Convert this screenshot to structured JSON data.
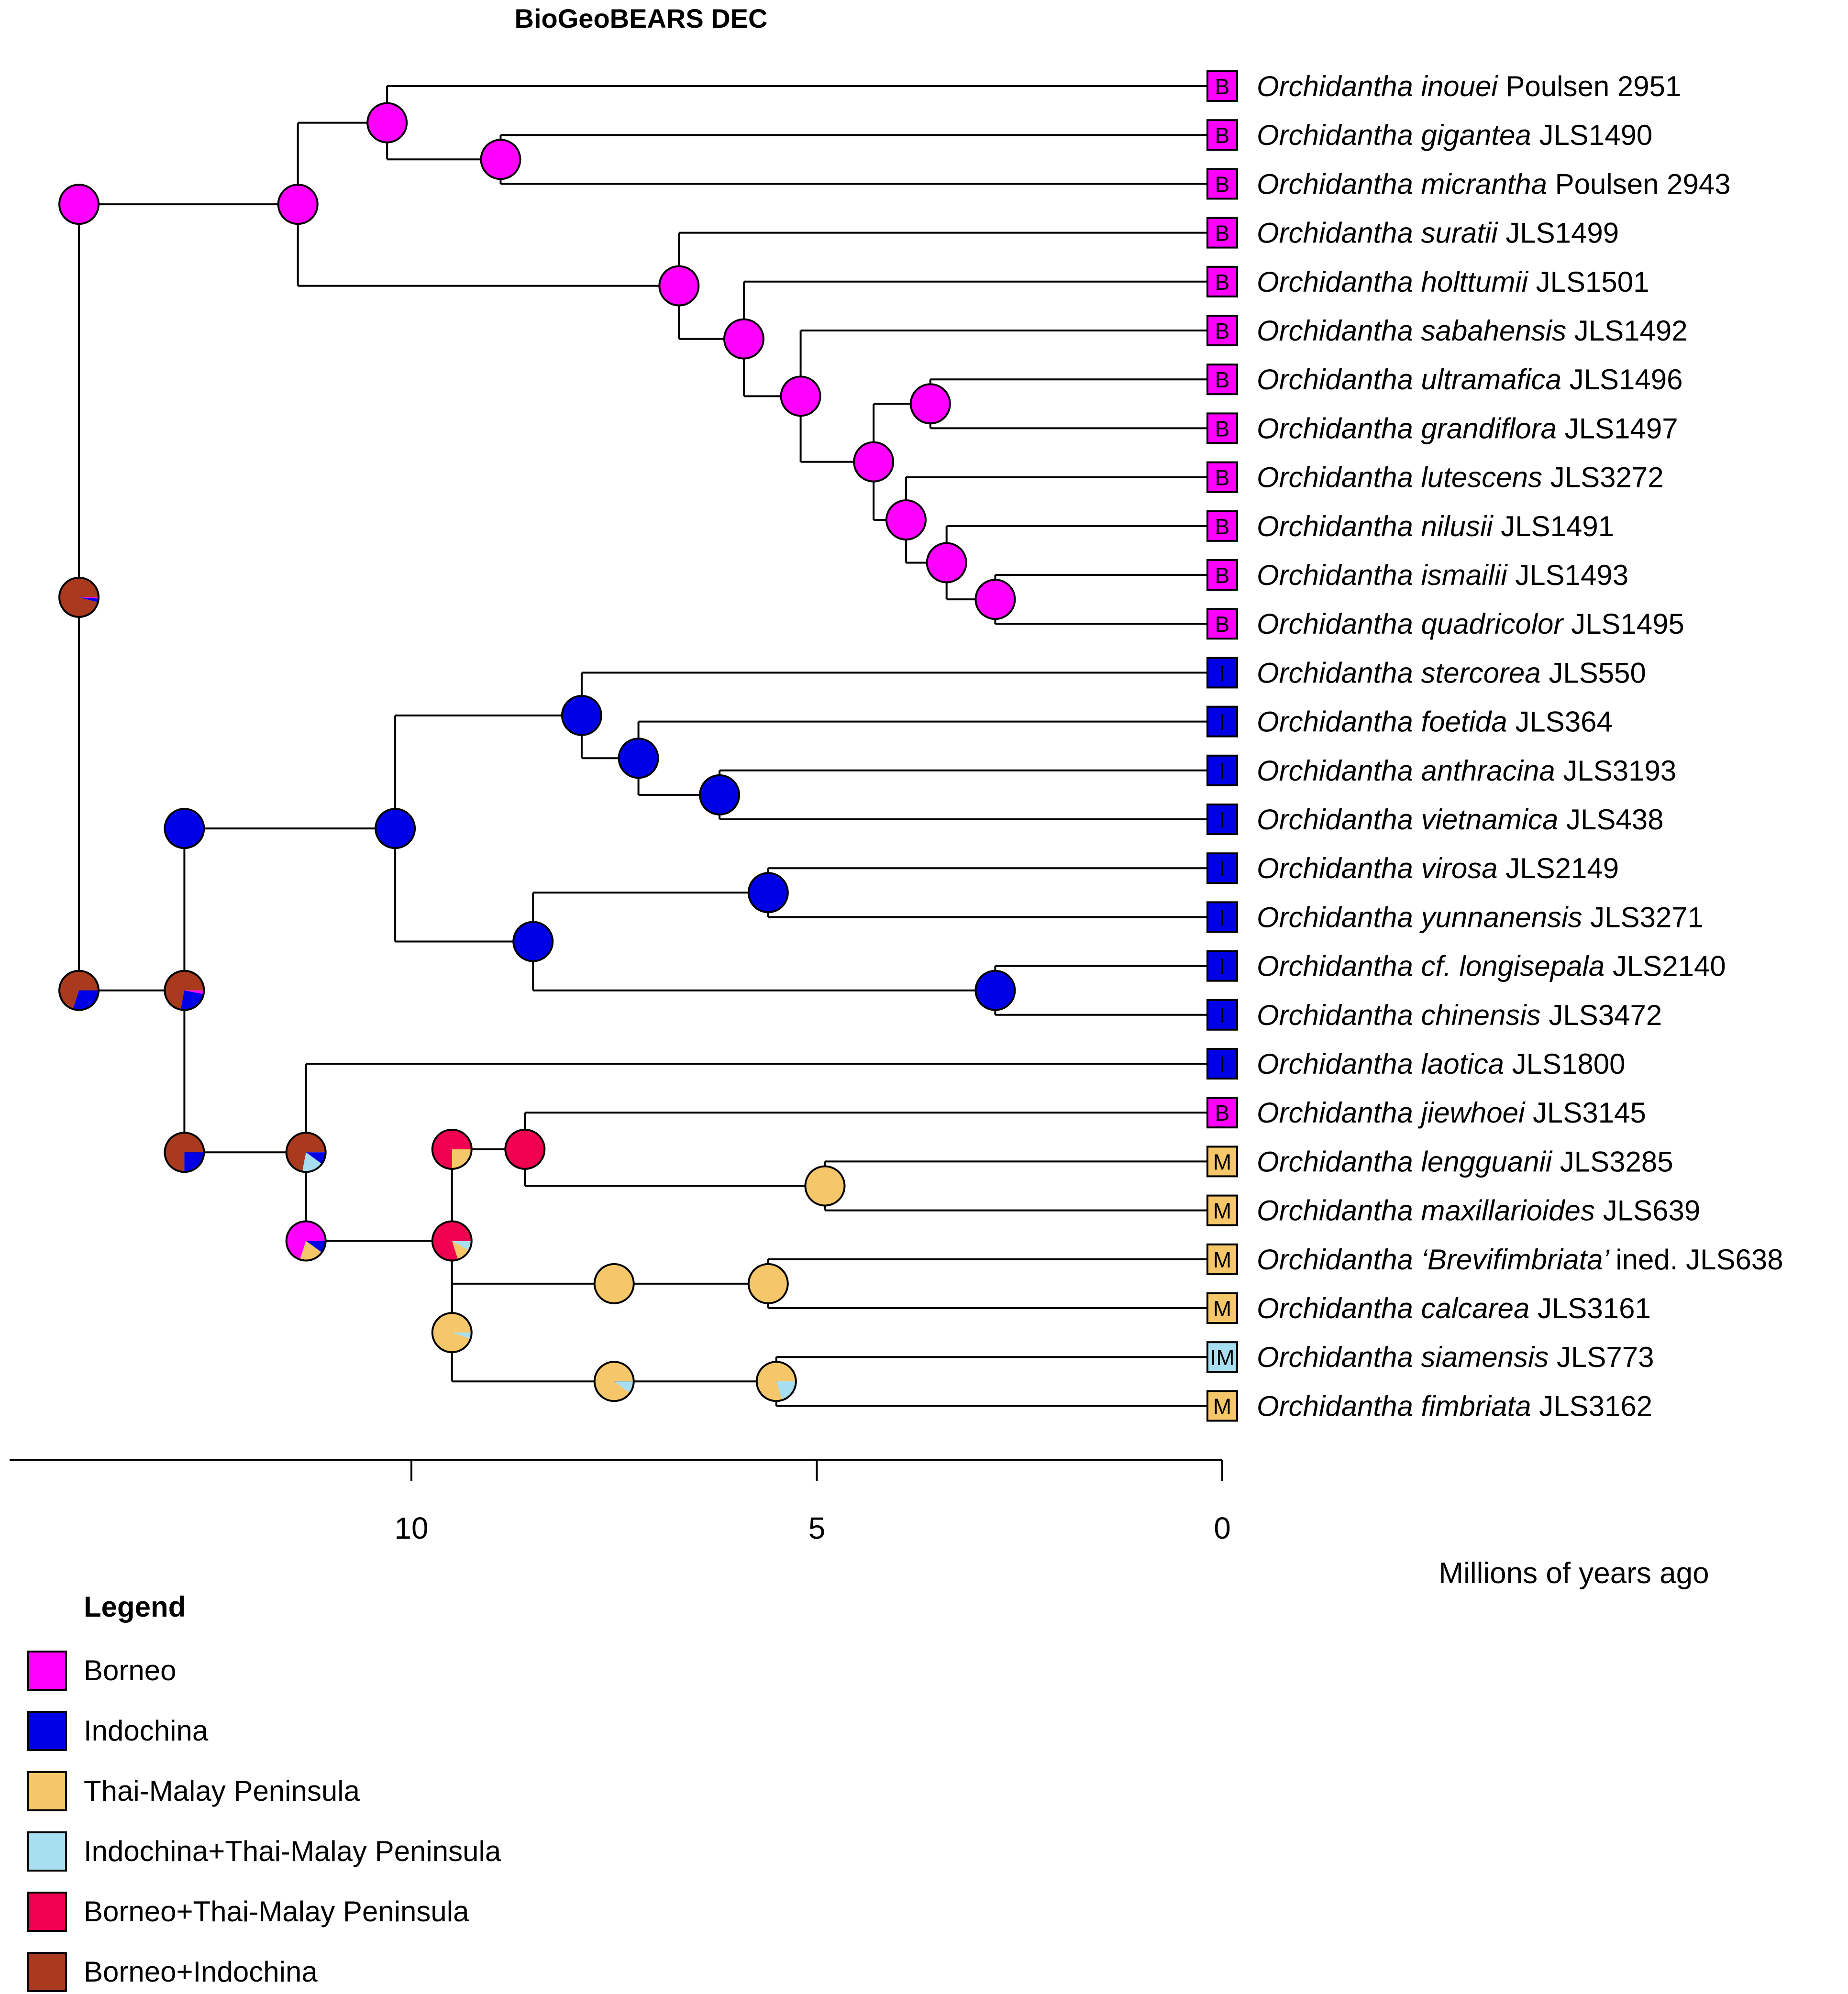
{
  "title": "BioGeoBEARS DEC",
  "colors": {
    "Borneo": "#ff00ff",
    "Indochina": "#0000e6",
    "Thai-Malay Peninsula": "#f5c76a",
    "Indochina+Thai-Malay Peninsula": "#a8dff0",
    "Borneo+Thai-Malay Peninsula": "#f00050",
    "Borneo+Indochina": "#a93a1e"
  },
  "legend": {
    "title": "Legend",
    "items": [
      {
        "label": "Borneo",
        "area": "Borneo"
      },
      {
        "label": "Indochina",
        "area": "Indochina"
      },
      {
        "label": "Thai-Malay Peninsula",
        "area": "Thai-Malay Peninsula"
      },
      {
        "label": "Indochina+Thai-Malay Peninsula",
        "area": "Indochina+Thai-Malay Peninsula"
      },
      {
        "label": "Borneo+Thai-Malay Peninsula",
        "area": "Borneo+Thai-Malay Peninsula"
      },
      {
        "label": "Borneo+Indochina",
        "area": "Borneo+Indochina"
      }
    ]
  },
  "axis": {
    "title": "Millions of years ago",
    "ticks": [
      {
        "value": 10,
        "label": "10"
      },
      {
        "value": 5,
        "label": "5"
      },
      {
        "value": 0,
        "label": "0"
      }
    ]
  },
  "tips": [
    {
      "genus": "Orchidantha",
      "species": "inouei",
      "voucher": "Poulsen 2951",
      "code": "B",
      "area": "Borneo"
    },
    {
      "genus": "Orchidantha",
      "species": "gigantea",
      "voucher": "JLS1490",
      "code": "B",
      "area": "Borneo"
    },
    {
      "genus": "Orchidantha",
      "species": "micrantha",
      "voucher": "Poulsen 2943",
      "code": "B",
      "area": "Borneo"
    },
    {
      "genus": "Orchidantha",
      "species": "suratii",
      "voucher": "JLS1499",
      "code": "B",
      "area": "Borneo"
    },
    {
      "genus": "Orchidantha",
      "species": "holttumii",
      "voucher": "JLS1501",
      "code": "B",
      "area": "Borneo"
    },
    {
      "genus": "Orchidantha",
      "species": "sabahensis",
      "voucher": "JLS1492",
      "code": "B",
      "area": "Borneo"
    },
    {
      "genus": "Orchidantha",
      "species": "ultramafica",
      "voucher": "JLS1496",
      "code": "B",
      "area": "Borneo"
    },
    {
      "genus": "Orchidantha",
      "species": "grandiflora",
      "voucher": "JLS1497",
      "code": "B",
      "area": "Borneo"
    },
    {
      "genus": "Orchidantha",
      "species": "lutescens",
      "voucher": "JLS3272",
      "code": "B",
      "area": "Borneo"
    },
    {
      "genus": "Orchidantha",
      "species": "nilusii",
      "voucher": "JLS1491",
      "code": "B",
      "area": "Borneo"
    },
    {
      "genus": "Orchidantha",
      "species": "ismailii",
      "voucher": "JLS1493",
      "code": "B",
      "area": "Borneo"
    },
    {
      "genus": "Orchidantha",
      "species": "quadricolor",
      "voucher": "JLS1495",
      "code": "B",
      "area": "Borneo"
    },
    {
      "genus": "Orchidantha",
      "species": "stercorea",
      "voucher": "JLS550",
      "code": "I",
      "area": "Indochina"
    },
    {
      "genus": "Orchidantha",
      "species": "foetida",
      "voucher": "JLS364",
      "code": "I",
      "area": "Indochina"
    },
    {
      "genus": "Orchidantha",
      "species": "anthracina",
      "voucher": "JLS3193",
      "code": "I",
      "area": "Indochina"
    },
    {
      "genus": "Orchidantha",
      "species": "vietnamica",
      "voucher": "JLS438",
      "code": "I",
      "area": "Indochina"
    },
    {
      "genus": "Orchidantha",
      "species": "virosa",
      "voucher": "JLS2149",
      "code": "I",
      "area": "Indochina"
    },
    {
      "genus": "Orchidantha",
      "species": "yunnanensis",
      "voucher": "JLS3271",
      "code": "I",
      "area": "Indochina"
    },
    {
      "genus": "Orchidantha",
      "species": "cf. longisepala",
      "voucher": "JLS2140",
      "code": "I",
      "area": "Indochina"
    },
    {
      "genus": "Orchidantha",
      "species": "chinensis",
      "voucher": "JLS3472",
      "code": "I",
      "area": "Indochina"
    },
    {
      "genus": "Orchidantha",
      "species": "laotica",
      "voucher": "JLS1800",
      "code": "I",
      "area": "Indochina"
    },
    {
      "genus": "Orchidantha",
      "species": "jiewhoei",
      "voucher": "JLS3145",
      "code": "B",
      "area": "Borneo"
    },
    {
      "genus": "Orchidantha",
      "species": "lengguanii",
      "voucher": "JLS3285",
      "code": "M",
      "area": "Thai-Malay Peninsula"
    },
    {
      "genus": "Orchidantha",
      "species": "maxillarioides",
      "voucher": "JLS639",
      "code": "M",
      "area": "Thai-Malay Peninsula"
    },
    {
      "genus": "Orchidantha",
      "species": "‘Brevifimbriata’",
      "voucher": "ined. JLS638",
      "code": "M",
      "area": "Thai-Malay Peninsula"
    },
    {
      "genus": "Orchidantha",
      "species": "calcarea",
      "voucher": "JLS3161",
      "code": "M",
      "area": "Thai-Malay Peninsula"
    },
    {
      "genus": "Orchidantha",
      "species": "siamensis",
      "voucher": "JLS773",
      "code": "IM",
      "area": "Indochina+Thai-Malay Peninsula"
    },
    {
      "genus": "Orchidantha",
      "species": "fimbriata",
      "voucher": "JLS3162",
      "code": "M",
      "area": "Thai-Malay Peninsula"
    }
  ],
  "nodes": [
    {
      "id": "n_inouei_gig",
      "age": 10.3,
      "children": [
        0,
        "n_gig_mic"
      ],
      "pie": {
        "Borneo": 1
      }
    },
    {
      "id": "n_gig_mic",
      "age": 8.9,
      "children": [
        1,
        2
      ],
      "pie": {
        "Borneo": 1
      }
    },
    {
      "id": "n_borneo_top",
      "age": 11.4,
      "children": [
        "n_inouei_gig",
        "n_suratii_clade"
      ],
      "pie": {
        "Borneo": 1
      }
    },
    {
      "id": "n_suratii_clade",
      "age": 6.7,
      "children": [
        3,
        "n_holt_clade"
      ],
      "pie": {
        "Borneo": 1
      }
    },
    {
      "id": "n_holt_clade",
      "age": 5.9,
      "children": [
        4,
        "n_sab_clade"
      ],
      "pie": {
        "Borneo": 1
      }
    },
    {
      "id": "n_sab_clade",
      "age": 5.2,
      "children": [
        5,
        "n_ultra_clade"
      ],
      "pie": {
        "Borneo": 1
      }
    },
    {
      "id": "n_ultra_clade",
      "age": 4.3,
      "children": [
        "n_ultra_grand",
        "n_lut_clade"
      ],
      "pie": {
        "Borneo": 1
      }
    },
    {
      "id": "n_ultra_grand",
      "age": 3.6,
      "children": [
        6,
        7
      ],
      "pie": {
        "Borneo": 1
      }
    },
    {
      "id": "n_lut_clade",
      "age": 3.9,
      "children": [
        8,
        "n_nil_clade"
      ],
      "pie": {
        "Borneo": 1
      }
    },
    {
      "id": "n_nil_clade",
      "age": 3.4,
      "children": [
        9,
        "n_ism_quad"
      ],
      "pie": {
        "Borneo": 1
      }
    },
    {
      "id": "n_ism_quad",
      "age": 2.8,
      "children": [
        10,
        11
      ],
      "pie": {
        "Borneo": 1
      }
    },
    {
      "id": "n_borneo_stem",
      "age": 14.1,
      "children": [
        "n_borneo_top"
      ],
      "pie": {
        "Borneo": 1
      }
    },
    {
      "id": "n_root",
      "age": 14.1,
      "children": [
        "n_borneo_stem",
        "n_rest"
      ],
      "pie": {
        "Borneo+Indochina": 0.96,
        "Indochina": 0.03,
        "Borneo": 0.01
      }
    },
    {
      "id": "n_rest",
      "age": 14.1,
      "children": [
        "n_ind_big"
      ],
      "pie": {
        "Borneo+Indochina": 0.7,
        "Indochina": 0.3
      }
    },
    {
      "id": "n_ind_big",
      "age": 12.8,
      "children": [
        "n_ind_top",
        "n_basal_laotica"
      ],
      "pie": {
        "Borneo+Indochina": 0.72,
        "Indochina": 0.25,
        "Borneo": 0.03
      }
    },
    {
      "id": "n_ind_top",
      "age": 12.8,
      "children": [
        "n_ind_core"
      ],
      "pie": {
        "Indochina": 1
      }
    },
    {
      "id": "n_ind_core",
      "age": 10.2,
      "children": [
        "n_sterc_clade",
        "n_virosa_clade"
      ],
      "pie": {
        "Indochina": 1
      }
    },
    {
      "id": "n_sterc_clade",
      "age": 7.9,
      "children": [
        12,
        "n_foet_clade"
      ],
      "pie": {
        "Indochina": 1
      }
    },
    {
      "id": "n_foet_clade",
      "age": 7.2,
      "children": [
        13,
        "n_anth_viet"
      ],
      "pie": {
        "Indochina": 1
      }
    },
    {
      "id": "n_anth_viet",
      "age": 6.2,
      "children": [
        14,
        15
      ],
      "pie": {
        "Indochina": 1
      }
    },
    {
      "id": "n_virosa_clade",
      "age": 8.5,
      "children": [
        "n_vir_yun",
        "n_long_chin"
      ],
      "pie": {
        "Indochina": 1
      }
    },
    {
      "id": "n_vir_yun",
      "age": 5.6,
      "children": [
        16,
        17
      ],
      "pie": {
        "Indochina": 1
      }
    },
    {
      "id": "n_long_chin",
      "age": 2.8,
      "children": [
        18,
        19
      ],
      "pie": {
        "Indochina": 1
      }
    },
    {
      "id": "n_basal_laotica",
      "age": 12.8,
      "children": [
        "n_laot_split"
      ],
      "pie": {
        "Borneo+Indochina": 0.75,
        "Indochina": 0.25
      }
    },
    {
      "id": "n_laot_split",
      "age": 11.3,
      "children": [
        20,
        "n_jiew_clade"
      ],
      "pie": {
        "Borneo+Indochina": 0.72,
        "Indochina+Thai-Malay Peninsula": 0.18,
        "Indochina": 0.1
      }
    },
    {
      "id": "n_jiew_clade",
      "age": 11.3,
      "children": [
        "n_bm_node"
      ],
      "pie": {
        "Borneo": 0.7,
        "Thai-Malay Peninsula": 0.2,
        "Indochina": 0.1
      }
    },
    {
      "id": "n_bm_node",
      "age": 9.5,
      "children": [
        "n_bm_top",
        "n_m_clade"
      ],
      "pie": {
        "Borneo+Thai-Malay Peninsula": 0.8,
        "Thai-Malay Peninsula": 0.12,
        "Indochina+Thai-Malay Peninsula": 0.08
      }
    },
    {
      "id": "n_bm_top",
      "age": 9.5,
      "children": [
        "n_jiew_leng"
      ],
      "pie": {
        "Borneo+Thai-Malay Peninsula": 0.75,
        "Thai-Malay Peninsula": 0.25
      }
    },
    {
      "id": "n_jiew_leng",
      "age": 8.6,
      "children": [
        21,
        "n_leng_max"
      ],
      "pie": {
        "Borneo+Thai-Malay Peninsula": 1
      }
    },
    {
      "id": "n_leng_max",
      "age": 4.9,
      "children": [
        22,
        23
      ],
      "pie": {
        "Thai-Malay Peninsula": 1
      }
    },
    {
      "id": "n_m_clade",
      "age": 9.5,
      "children": [
        "n_brev_clade",
        "n_siam_clade"
      ],
      "pie": {
        "Thai-Malay Peninsula": 0.95,
        "Indochina+Thai-Malay Peninsula": 0.05
      }
    },
    {
      "id": "n_brev_clade",
      "age": 7.5,
      "children": [
        "n_brev_calc"
      ],
      "pie": {
        "Thai-Malay Peninsula": 1
      }
    },
    {
      "id": "n_brev_calc",
      "age": 5.6,
      "children": [
        24,
        25
      ],
      "pie": {
        "Thai-Malay Peninsula": 1
      }
    },
    {
      "id": "n_siam_clade",
      "age": 7.5,
      "children": [
        "n_siam_fimb"
      ],
      "pie": {
        "Thai-Malay Peninsula": 0.9,
        "Indochina+Thai-Malay Peninsula": 0.1
      }
    },
    {
      "id": "n_siam_fimb",
      "age": 5.5,
      "children": [
        26,
        27
      ],
      "pie": {
        "Thai-Malay Peninsula": 0.8,
        "Indochina+Thai-Malay Peninsula": 0.2
      }
    }
  ]
}
